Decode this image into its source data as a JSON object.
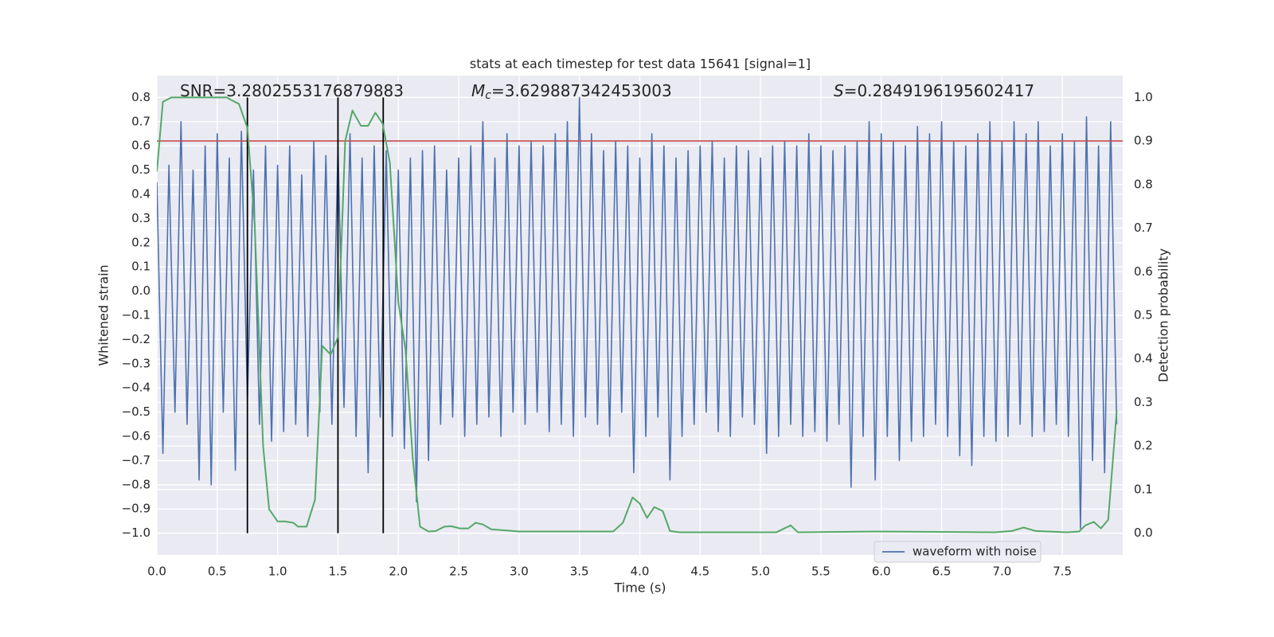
{
  "chart_data": {
    "type": "line",
    "title": "stats at each timestep for test data 15641 [signal=1]",
    "xlabel": "Time (s)",
    "ylabel": "Whitened strain",
    "y2label": "Detection probability",
    "annotations": [
      {
        "text": "SNR=3.2802553176879883"
      },
      {
        "symbol": "M",
        "subscript": "c",
        "text": "=3.629887342453003"
      },
      {
        "symbol": "S",
        "text": "=0.2849196195602417"
      }
    ],
    "xlim": [
      0,
      8.0
    ],
    "ylim": [
      -1.09,
      0.89
    ],
    "y2lim": [
      -0.05,
      1.05
    ],
    "xticks": [
      {
        "value": 0,
        "label": "0.0"
      },
      {
        "value": 0.5,
        "label": "0.5"
      },
      {
        "value": 1,
        "label": "1.0"
      },
      {
        "value": 1.5,
        "label": "1.5"
      },
      {
        "value": 2,
        "label": "2.0"
      },
      {
        "value": 2.5,
        "label": "2.5"
      },
      {
        "value": 3,
        "label": "3.0"
      },
      {
        "value": 3.5,
        "label": "3.5"
      },
      {
        "value": 4,
        "label": "4.0"
      },
      {
        "value": 4.5,
        "label": "4.5"
      },
      {
        "value": 5,
        "label": "5.0"
      },
      {
        "value": 5.5,
        "label": "5.5"
      },
      {
        "value": 6,
        "label": "6.0"
      },
      {
        "value": 6.5,
        "label": "6.5"
      },
      {
        "value": 7,
        "label": "7.0"
      },
      {
        "value": 7.5,
        "label": "7.5"
      }
    ],
    "yticks": [
      {
        "value": -1.0,
        "label": "−1.0"
      },
      {
        "value": -0.9,
        "label": "−0.9"
      },
      {
        "value": -0.8,
        "label": "−0.8"
      },
      {
        "value": -0.7,
        "label": "−0.7"
      },
      {
        "value": -0.6,
        "label": "−0.6"
      },
      {
        "value": -0.5,
        "label": "−0.5"
      },
      {
        "value": -0.4,
        "label": "−0.4"
      },
      {
        "value": -0.3,
        "label": "−0.3"
      },
      {
        "value": -0.2,
        "label": "−0.2"
      },
      {
        "value": -0.1,
        "label": "−0.1"
      },
      {
        "value": 0,
        "label": "0.0"
      },
      {
        "value": 0.1,
        "label": "0.1"
      },
      {
        "value": 0.2,
        "label": "0.2"
      },
      {
        "value": 0.3,
        "label": "0.3"
      },
      {
        "value": 0.4,
        "label": "0.4"
      },
      {
        "value": 0.5,
        "label": "0.5"
      },
      {
        "value": 0.6,
        "label": "0.6"
      },
      {
        "value": 0.7,
        "label": "0.7"
      },
      {
        "value": 0.8,
        "label": "0.8"
      }
    ],
    "y2ticks": [
      {
        "value": 0,
        "label": "0.0"
      },
      {
        "value": 0.1,
        "label": "0.1"
      },
      {
        "value": 0.2,
        "label": "0.2"
      },
      {
        "value": 0.3,
        "label": "0.3"
      },
      {
        "value": 0.4,
        "label": "0.4"
      },
      {
        "value": 0.5,
        "label": "0.5"
      },
      {
        "value": 0.6,
        "label": "0.6"
      },
      {
        "value": 0.7,
        "label": "0.7"
      },
      {
        "value": 0.8,
        "label": "0.8"
      },
      {
        "value": 0.9,
        "label": "0.9"
      },
      {
        "value": 1,
        "label": "1.0"
      }
    ],
    "grid": true,
    "legend": "lower right",
    "series": [
      {
        "name": "waveform with noise",
        "color": "#4c72b0",
        "axis": "y",
        "x": [
          0,
          0.05,
          0.1,
          0.15,
          0.2,
          0.25,
          0.3,
          0.35,
          0.4,
          0.45,
          0.5,
          0.55,
          0.6,
          0.65,
          0.7,
          0.75,
          0.8,
          0.85,
          0.9,
          0.95,
          1,
          1.05,
          1.1,
          1.15,
          1.2,
          1.25,
          1.3,
          1.35,
          1.4,
          1.45,
          1.5,
          1.55,
          1.6,
          1.65,
          1.7,
          1.75,
          1.8,
          1.85,
          1.9,
          1.95,
          2,
          2.05,
          2.1,
          2.15,
          2.2,
          2.25,
          2.3,
          2.35,
          2.4,
          2.45,
          2.5,
          2.55,
          2.6,
          2.65,
          2.7,
          2.75,
          2.8,
          2.85,
          2.9,
          2.95,
          3,
          3.05,
          3.1,
          3.15,
          3.2,
          3.25,
          3.3,
          3.35,
          3.4,
          3.45,
          3.5,
          3.55,
          3.6,
          3.65,
          3.7,
          3.75,
          3.8,
          3.85,
          3.9,
          3.95,
          4,
          4.05,
          4.1,
          4.15,
          4.2,
          4.25,
          4.3,
          4.35,
          4.4,
          4.45,
          4.5,
          4.55,
          4.6,
          4.65,
          4.7,
          4.75,
          4.8,
          4.85,
          4.9,
          4.95,
          5,
          5.05,
          5.1,
          5.15,
          5.2,
          5.25,
          5.3,
          5.35,
          5.4,
          5.45,
          5.5,
          5.55,
          5.6,
          5.65,
          5.7,
          5.75,
          5.8,
          5.85,
          5.9,
          5.95,
          6,
          6.05,
          6.1,
          6.15,
          6.2,
          6.25,
          6.3,
          6.35,
          6.4,
          6.45,
          6.5,
          6.55,
          6.6,
          6.65,
          6.7,
          6.75,
          6.8,
          6.85,
          6.9,
          6.95,
          7,
          7.05,
          7.1,
          7.15,
          7.2,
          7.25,
          7.3,
          7.35,
          7.4,
          7.45,
          7.5,
          7.55,
          7.6,
          7.65,
          7.7,
          7.75,
          7.8,
          7.85,
          7.9,
          7.95
        ],
        "values": [
          0.45,
          -0.67,
          0.52,
          -0.5,
          0.7,
          -0.55,
          0.5,
          -0.78,
          0.6,
          -0.8,
          0.65,
          -0.5,
          0.55,
          -0.74,
          0.66,
          -0.45,
          0.5,
          -0.55,
          0.6,
          -0.62,
          0.52,
          -0.58,
          0.6,
          -0.55,
          0.48,
          -0.6,
          0.62,
          -0.5,
          0.56,
          -0.55,
          0.6,
          -0.48,
          0.65,
          -0.6,
          0.55,
          -0.75,
          0.6,
          -0.52,
          0.58,
          -0.6,
          0.5,
          -0.65,
          0.55,
          -0.87,
          0.58,
          -0.7,
          0.6,
          -0.55,
          0.5,
          -0.52,
          0.55,
          -0.6,
          0.6,
          -0.55,
          0.7,
          -0.52,
          0.55,
          -0.6,
          0.65,
          -0.5,
          0.6,
          -0.55,
          0.62,
          -0.5,
          0.6,
          -0.58,
          0.65,
          -0.55,
          0.7,
          -0.6,
          0.8,
          -0.52,
          0.65,
          -0.55,
          0.58,
          -0.6,
          0.62,
          -0.5,
          0.6,
          -0.75,
          0.55,
          -0.6,
          0.65,
          -0.52,
          0.6,
          -0.78,
          0.55,
          -0.6,
          0.58,
          -0.55,
          0.6,
          -0.5,
          0.62,
          -0.58,
          0.55,
          -0.6,
          0.6,
          -0.52,
          0.58,
          -0.55,
          0.55,
          -0.67,
          0.6,
          -0.6,
          0.62,
          -0.55,
          0.6,
          -0.6,
          0.65,
          -0.58,
          0.6,
          -0.62,
          0.58,
          -0.55,
          0.6,
          -0.81,
          0.62,
          -0.6,
          0.7,
          -0.78,
          0.65,
          -0.6,
          0.62,
          -0.7,
          0.6,
          -0.62,
          0.68,
          -0.6,
          0.65,
          -0.55,
          0.7,
          -0.6,
          0.62,
          -0.68,
          0.6,
          -0.72,
          0.65,
          -0.6,
          0.7,
          -0.62,
          0.62,
          -0.6,
          0.7,
          -0.55,
          0.65,
          -0.6,
          0.7,
          -0.58,
          0.6,
          -0.55,
          0.65,
          -0.6,
          0.62,
          -0.98,
          0.72,
          -0.7,
          0.6,
          -0.75,
          0.7,
          -0.55
        ]
      },
      {
        "color": "#55a868",
        "axis": "y2",
        "x": [
          0,
          0.05,
          0.12,
          0.58,
          0.61,
          0.68,
          0.75,
          0.81,
          0.88,
          0.93,
          1.0,
          1.06,
          1.13,
          1.17,
          1.24,
          1.31,
          1.37,
          1.44,
          1.5,
          1.56,
          1.62,
          1.69,
          1.75,
          1.81,
          1.87,
          1.93,
          2.0,
          2.06,
          2.12,
          2.18,
          2.25,
          2.31,
          2.38,
          2.44,
          2.51,
          2.58,
          2.64,
          2.7,
          2.77,
          3.0,
          3.3,
          3.65,
          3.78,
          3.86,
          3.94,
          4.0,
          4.06,
          4.12,
          4.19,
          4.25,
          4.33,
          4.97,
          5.13,
          5.25,
          5.31,
          5.95,
          6.94,
          7.08,
          7.18,
          7.28,
          7.54,
          7.64,
          7.69,
          7.76,
          7.82,
          7.88,
          7.95
        ],
        "values": [
          0.83,
          0.99,
          1.0,
          1.0,
          0.995,
          0.985,
          0.93,
          0.71,
          0.2,
          0.055,
          0.027,
          0.027,
          0.024,
          0.015,
          0.015,
          0.077,
          0.43,
          0.41,
          0.45,
          0.9,
          0.97,
          0.935,
          0.935,
          0.965,
          0.94,
          0.85,
          0.53,
          0.42,
          0.17,
          0.015,
          0.004,
          0.005,
          0.015,
          0.016,
          0.011,
          0.011,
          0.024,
          0.02,
          0.009,
          0.004,
          0.004,
          0.004,
          0.004,
          0.024,
          0.082,
          0.068,
          0.035,
          0.06,
          0.051,
          0.005,
          0.002,
          0.002,
          0.002,
          0.018,
          0.002,
          0.004,
          0.002,
          0.005,
          0.013,
          0.005,
          0.002,
          0.004,
          0.018,
          0.026,
          0.011,
          0.031,
          0.28
        ]
      }
    ],
    "threshold": {
      "value": 0.9,
      "axis": "y2",
      "color": "#c44e52"
    },
    "vlines": {
      "x": [
        0.75,
        1.5,
        1.875
      ],
      "span": [
        0,
        1
      ],
      "axis": "y2",
      "color": "#000000"
    }
  }
}
